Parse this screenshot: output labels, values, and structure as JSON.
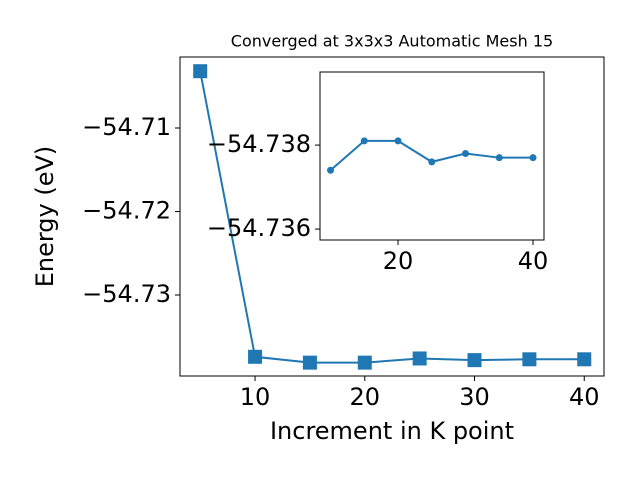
{
  "chart_data": [
    {
      "type": "line",
      "title": "Converged at 3x3x3 Automatic Mesh 15",
      "xlabel": "Increment in K point",
      "ylabel": "Energy (eV)",
      "x": [
        5,
        10,
        15,
        20,
        25,
        30,
        35,
        40
      ],
      "series": [
        {
          "color": "#1f77b4",
          "marker": "square",
          "values": [
            -54.7032,
            -54.7374,
            -54.7381,
            -54.7381,
            -54.7376,
            -54.7378,
            -54.7377,
            -54.7377
          ]
        }
      ],
      "xlim": [
        3.16,
        41.8
      ],
      "ylim": [
        -54.7397,
        -54.7015
      ],
      "xticks": [
        10,
        20,
        30,
        40
      ],
      "yticks": [
        {
          "value": -54.73,
          "label": "−54.73"
        },
        {
          "value": -54.72,
          "label": "−54.72"
        },
        {
          "value": -54.71,
          "label": "−54.71"
        }
      ]
    },
    {
      "type": "line",
      "x": [
        10,
        15,
        20,
        25,
        30,
        35,
        40
      ],
      "series": [
        {
          "color": "#1f77b4",
          "marker": "circle",
          "values": [
            -54.7374,
            -54.7381,
            -54.7381,
            -54.7376,
            -54.7378,
            -54.7377,
            -54.7377
          ]
        }
      ],
      "xlim": [
        8.44,
        41.63
      ],
      "ylim": [
        -54.73974,
        -54.73574
      ],
      "yinverted": true,
      "xticks": [
        20,
        40
      ],
      "yticks": [
        {
          "value": -54.738,
          "label": "−54.738"
        },
        {
          "value": -54.736,
          "label": "−54.736"
        }
      ]
    }
  ]
}
